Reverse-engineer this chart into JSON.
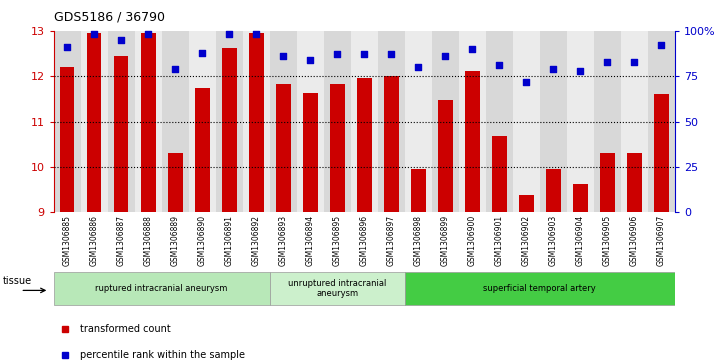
{
  "title": "GDS5186 / 36790",
  "samples": [
    "GSM1306885",
    "GSM1306886",
    "GSM1306887",
    "GSM1306888",
    "GSM1306889",
    "GSM1306890",
    "GSM1306891",
    "GSM1306892",
    "GSM1306893",
    "GSM1306894",
    "GSM1306895",
    "GSM1306896",
    "GSM1306897",
    "GSM1306898",
    "GSM1306899",
    "GSM1306900",
    "GSM1306901",
    "GSM1306902",
    "GSM1306903",
    "GSM1306904",
    "GSM1306905",
    "GSM1306906",
    "GSM1306907"
  ],
  "bar_values": [
    12.2,
    12.95,
    12.45,
    12.95,
    10.3,
    11.75,
    12.62,
    12.95,
    11.82,
    11.62,
    11.82,
    11.95,
    12.0,
    9.95,
    11.48,
    12.12,
    10.68,
    9.38,
    9.95,
    9.62,
    10.3,
    10.3,
    11.6
  ],
  "blue_values": [
    91,
    98,
    95,
    98,
    79,
    88,
    98,
    98,
    86,
    84,
    87,
    87,
    87,
    80,
    86,
    90,
    81,
    72,
    79,
    78,
    83,
    83,
    92
  ],
  "ylim_left": [
    9,
    13
  ],
  "ylim_right": [
    0,
    100
  ],
  "yticks_left": [
    9,
    10,
    11,
    12,
    13
  ],
  "yticks_right": [
    0,
    25,
    50,
    75,
    100
  ],
  "ytick_labels_right": [
    "0",
    "25",
    "50",
    "75",
    "100%"
  ],
  "bar_color": "#cc0000",
  "dot_color": "#0000cc",
  "bg_color": "#ffffff",
  "col_even": "#d8d8d8",
  "col_odd": "#ebebeb",
  "groups": [
    {
      "label": "ruptured intracranial aneurysm",
      "start": 0,
      "end": 8,
      "color": "#b8e8b8"
    },
    {
      "label": "unruptured intracranial\naneurysm",
      "start": 8,
      "end": 13,
      "color": "#ccf0cc"
    },
    {
      "label": "superficial temporal artery",
      "start": 13,
      "end": 23,
      "color": "#44cc44"
    }
  ],
  "legend_items": [
    {
      "label": "transformed count",
      "color": "#cc0000"
    },
    {
      "label": "percentile rank within the sample",
      "color": "#0000cc"
    }
  ],
  "tissue_label": "tissue"
}
